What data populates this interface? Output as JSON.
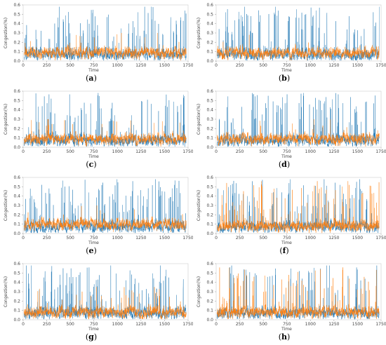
{
  "figure": {
    "panels": [
      {
        "caption_open": "(",
        "caption_letter": "a",
        "caption_close": ")"
      },
      {
        "caption_open": "(",
        "caption_letter": "b",
        "caption_close": ")"
      },
      {
        "caption_open": "(",
        "caption_letter": "c",
        "caption_close": ")"
      },
      {
        "caption_open": "(",
        "caption_letter": "d",
        "caption_close": ")"
      },
      {
        "caption_open": "(",
        "caption_letter": "e",
        "caption_close": ")"
      },
      {
        "caption_open": "(",
        "caption_letter": "f",
        "caption_close": ")"
      },
      {
        "caption_open": "(",
        "caption_letter": "g",
        "caption_close": ")"
      },
      {
        "caption_open": "(",
        "caption_letter": "h",
        "caption_close": ")"
      }
    ]
  },
  "chart_data": [
    {
      "panel": "a",
      "type": "line",
      "xlabel": "Time",
      "ylabel": "Congestion(%)",
      "xlim": [
        0,
        1750
      ],
      "ylim": [
        0.0,
        0.6
      ],
      "xticks": [
        0,
        250,
        500,
        750,
        1000,
        1250,
        1500,
        1750
      ],
      "yticks": [
        0.0,
        0.1,
        0.2,
        0.3,
        0.4,
        0.5,
        0.6
      ],
      "grid": false,
      "n_points": 1750,
      "series": [
        {
          "color": "#1f77b4",
          "peak": 0.58,
          "baseline": 0.07,
          "spike_rate": 0.06,
          "seed": 11
        },
        {
          "color": "#ff7f0e",
          "peak": 0.3,
          "baseline": 0.09,
          "spike_rate": 0.01,
          "seed": 21
        }
      ]
    },
    {
      "panel": "b",
      "type": "line",
      "xlabel": "Time",
      "ylabel": "Congestion(%)",
      "xlim": [
        0,
        1750
      ],
      "ylim": [
        0.0,
        0.6
      ],
      "xticks": [
        0,
        250,
        500,
        750,
        1000,
        1250,
        1500,
        1750
      ],
      "yticks": [
        0.0,
        0.1,
        0.2,
        0.3,
        0.4,
        0.5,
        0.6
      ],
      "grid": false,
      "n_points": 1750,
      "series": [
        {
          "color": "#1f77b4",
          "peak": 0.58,
          "baseline": 0.07,
          "spike_rate": 0.06,
          "seed": 12
        },
        {
          "color": "#ff7f0e",
          "peak": 0.28,
          "baseline": 0.09,
          "spike_rate": 0.01,
          "seed": 22
        }
      ]
    },
    {
      "panel": "c",
      "type": "line",
      "xlabel": "Time",
      "ylabel": "Congestion(%)",
      "xlim": [
        0,
        1750
      ],
      "ylim": [
        0.0,
        0.6
      ],
      "xticks": [
        0,
        250,
        500,
        750,
        1000,
        1250,
        1500,
        1750
      ],
      "yticks": [
        0.0,
        0.1,
        0.2,
        0.3,
        0.4,
        0.5,
        0.6
      ],
      "grid": false,
      "n_points": 1750,
      "series": [
        {
          "color": "#1f77b4",
          "peak": 0.58,
          "baseline": 0.07,
          "spike_rate": 0.06,
          "seed": 13
        },
        {
          "color": "#ff7f0e",
          "peak": 0.3,
          "baseline": 0.09,
          "spike_rate": 0.012,
          "seed": 23
        }
      ]
    },
    {
      "panel": "d",
      "type": "line",
      "xlabel": "Time",
      "ylabel": "Congestion(%)",
      "xlim": [
        0,
        1750
      ],
      "ylim": [
        0.0,
        0.6
      ],
      "xticks": [
        0,
        250,
        500,
        750,
        1000,
        1250,
        1500,
        1750
      ],
      "yticks": [
        0.0,
        0.1,
        0.2,
        0.3,
        0.4,
        0.5,
        0.6
      ],
      "grid": false,
      "n_points": 1750,
      "series": [
        {
          "color": "#1f77b4",
          "peak": 0.58,
          "baseline": 0.07,
          "spike_rate": 0.06,
          "seed": 14
        },
        {
          "color": "#ff7f0e",
          "peak": 0.3,
          "baseline": 0.09,
          "spike_rate": 0.012,
          "seed": 24
        }
      ]
    },
    {
      "panel": "e",
      "type": "line",
      "xlabel": "Time",
      "ylabel": "Congestion(%)",
      "xlim": [
        0,
        1750
      ],
      "ylim": [
        0.0,
        0.6
      ],
      "xticks": [
        0,
        250,
        500,
        750,
        1000,
        1250,
        1500,
        1750
      ],
      "yticks": [
        0.0,
        0.1,
        0.2,
        0.3,
        0.4,
        0.5,
        0.6
      ],
      "grid": false,
      "n_points": 1750,
      "series": [
        {
          "color": "#1f77b4",
          "peak": 0.58,
          "baseline": 0.07,
          "spike_rate": 0.06,
          "seed": 15
        },
        {
          "color": "#ff7f0e",
          "peak": 0.3,
          "baseline": 0.1,
          "spike_rate": 0.012,
          "seed": 25
        }
      ]
    },
    {
      "panel": "f",
      "type": "line",
      "xlabel": "Time",
      "ylabel": "Congestion(%)",
      "xlim": [
        0,
        1750
      ],
      "ylim": [
        0.0,
        0.6
      ],
      "xticks": [
        0,
        250,
        500,
        750,
        1000,
        1250,
        1500,
        1750
      ],
      "yticks": [
        0.0,
        0.1,
        0.2,
        0.3,
        0.4,
        0.5,
        0.6
      ],
      "grid": false,
      "n_points": 1750,
      "series": [
        {
          "color": "#1f77b4",
          "peak": 0.58,
          "baseline": 0.07,
          "spike_rate": 0.06,
          "seed": 16
        },
        {
          "color": "#ff7f0e",
          "peak": 0.56,
          "baseline": 0.08,
          "spike_rate": 0.05,
          "seed": 26
        }
      ]
    },
    {
      "panel": "g",
      "type": "line",
      "xlabel": "Time",
      "ylabel": "Congestion(%)",
      "xlim": [
        0,
        1750
      ],
      "ylim": [
        0.0,
        0.6
      ],
      "xticks": [
        0,
        250,
        500,
        750,
        1000,
        1250,
        1500,
        1750
      ],
      "yticks": [
        0.0,
        0.1,
        0.2,
        0.3,
        0.4,
        0.5,
        0.6
      ],
      "grid": false,
      "n_points": 1750,
      "series": [
        {
          "color": "#1f77b4",
          "peak": 0.58,
          "baseline": 0.07,
          "spike_rate": 0.06,
          "seed": 17
        },
        {
          "color": "#ff7f0e",
          "peak": 0.35,
          "baseline": 0.08,
          "spike_rate": 0.02,
          "seed": 27
        }
      ]
    },
    {
      "panel": "h",
      "type": "line",
      "xlabel": "Time",
      "ylabel": "Congestion(%)",
      "xlim": [
        0,
        1750
      ],
      "ylim": [
        0.0,
        0.6
      ],
      "xticks": [
        0,
        250,
        500,
        750,
        1000,
        1250,
        1500,
        1750
      ],
      "yticks": [
        0.0,
        0.1,
        0.2,
        0.3,
        0.4,
        0.5,
        0.6
      ],
      "grid": false,
      "n_points": 1750,
      "series": [
        {
          "color": "#1f77b4",
          "peak": 0.58,
          "baseline": 0.07,
          "spike_rate": 0.06,
          "seed": 18
        },
        {
          "color": "#ff7f0e",
          "peak": 0.56,
          "baseline": 0.08,
          "spike_rate": 0.045,
          "seed": 28
        }
      ]
    }
  ]
}
